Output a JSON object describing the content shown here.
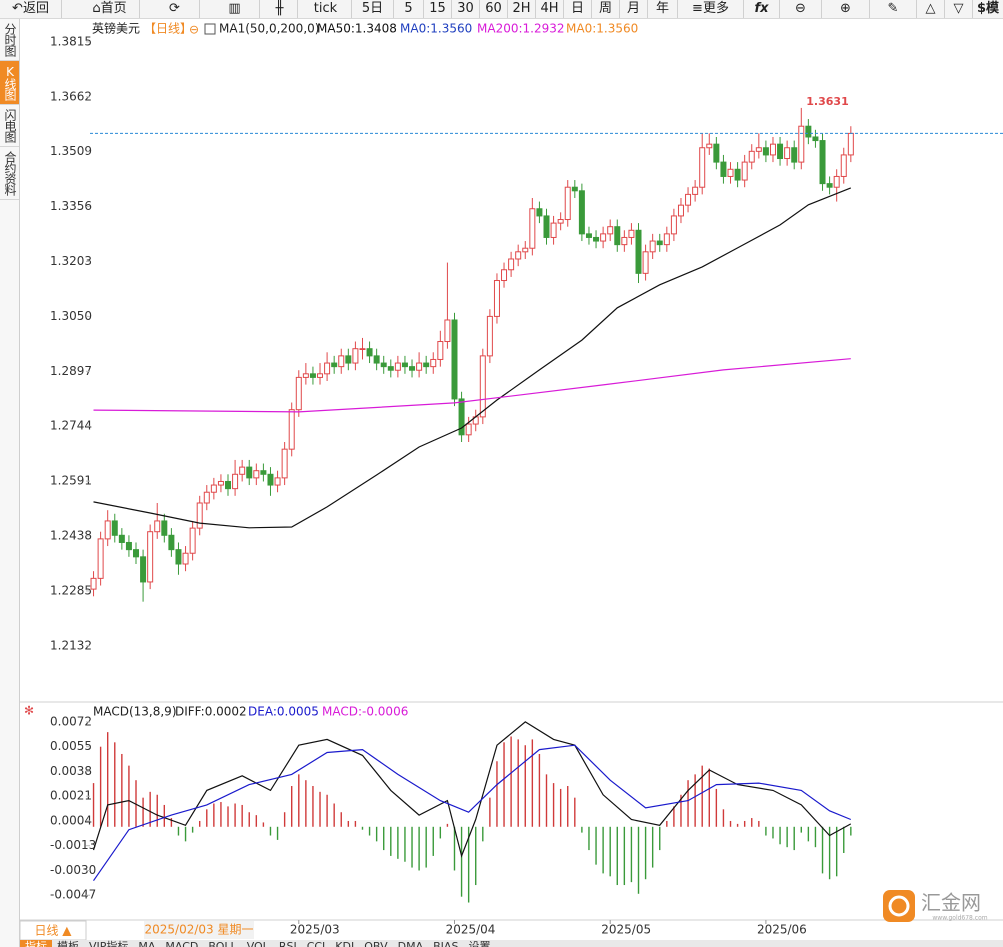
{
  "toolbar": [
    "返回",
    "首页",
    "tick",
    "5日",
    "5",
    "15",
    "30",
    "60",
    "2H",
    "4H",
    "日",
    "周",
    "月",
    "年",
    "更多",
    "fx",
    "$模"
  ],
  "sidebar": [
    "分时图",
    "K线图",
    "闪电图",
    "合约资料"
  ],
  "bottom_tabs": [
    "指标",
    "模板",
    "VIP指标",
    "MA",
    "MACD",
    "BOLL",
    "VOL",
    "RSI",
    "CCI",
    "KDJ",
    "OBV",
    "DMA",
    "BIAS",
    "设置"
  ],
  "period_tab": "日线 ▲",
  "watermark": {
    "name": "汇金网",
    "url": "www.gold678.com"
  },
  "chart_data": [
    {
      "type": "candlestick",
      "title": "英镑美元",
      "period": "【日线】",
      "indicator": "MA1(50,0,200,0)",
      "cursor_label": "2025/02/03 星期一",
      "up_color": "#e0484a",
      "down_color": "#3a9a3a",
      "last_line_color": "#2a8ad6",
      "annotation_color": "#e0484a",
      "xlim": [
        -0.5,
        128.5
      ],
      "ylim": [
        1.1981,
        1.3876
      ],
      "xticks": [
        {
          "value": 29,
          "label": "2025/03"
        },
        {
          "value": 51,
          "label": "2025/04"
        },
        {
          "value": 73,
          "label": "2025/05"
        },
        {
          "value": 95,
          "label": "2025/06"
        }
      ],
      "yticks": [
        1.3815,
        1.3662,
        1.3509,
        1.3356,
        1.3203,
        {
          "value": 1.305,
          "label": "1.3050"
        },
        1.2897,
        1.2744,
        1.2591,
        1.2438,
        1.2285,
        1.2132
      ],
      "x": [
        0,
        1,
        2,
        3,
        4,
        5,
        6,
        7,
        8,
        9,
        10,
        11,
        12,
        13,
        14,
        15,
        16,
        17,
        18,
        19,
        20,
        21,
        22,
        23,
        24,
        25,
        26,
        27,
        28,
        29,
        30,
        31,
        32,
        33,
        34,
        35,
        36,
        37,
        38,
        39,
        40,
        41,
        42,
        43,
        44,
        45,
        46,
        47,
        48,
        49,
        50,
        51,
        52,
        53,
        54,
        55,
        56,
        57,
        58,
        59,
        60,
        61,
        62,
        63,
        64,
        65,
        66,
        67,
        68,
        69,
        70,
        71,
        72,
        73,
        74,
        75,
        76,
        77,
        78,
        79,
        80,
        81,
        82,
        83,
        84,
        85,
        86,
        87,
        88,
        89,
        90,
        91,
        92,
        93,
        94,
        95,
        96,
        97,
        98,
        99,
        100,
        101,
        102,
        103,
        104,
        105,
        106,
        107
      ],
      "open": [
        1.229,
        1.232,
        1.243,
        1.248,
        1.244,
        1.242,
        1.24,
        1.238,
        1.231,
        1.245,
        1.248,
        1.244,
        1.24,
        1.236,
        1.239,
        1.246,
        1.253,
        1.256,
        1.258,
        1.259,
        1.257,
        1.261,
        1.263,
        1.26,
        1.262,
        1.261,
        1.258,
        1.26,
        1.268,
        1.279,
        1.288,
        1.289,
        1.288,
        1.289,
        1.292,
        1.291,
        1.294,
        1.292,
        1.296,
        1.296,
        1.294,
        1.292,
        1.291,
        1.29,
        1.292,
        1.291,
        1.29,
        1.292,
        1.291,
        1.293,
        1.298,
        1.304,
        1.282,
        1.272,
        1.275,
        1.277,
        1.294,
        1.305,
        1.315,
        1.318,
        1.321,
        1.323,
        1.324,
        1.335,
        1.333,
        1.327,
        1.331,
        1.332,
        1.341,
        1.34,
        1.328,
        1.327,
        1.326,
        1.328,
        1.33,
        1.325,
        1.327,
        1.329,
        1.317,
        1.323,
        1.326,
        1.325,
        1.328,
        1.333,
        1.336,
        1.339,
        1.341,
        1.352,
        1.353,
        1.348,
        1.344,
        1.346,
        1.343,
        1.348,
        1.351,
        1.352,
        1.35,
        1.353,
        1.349,
        1.352,
        1.348,
        1.358,
        1.355,
        1.354,
        1.342,
        1.341,
        1.344,
        1.35
      ],
      "high": [
        1.234,
        1.245,
        1.251,
        1.25,
        1.246,
        1.244,
        1.242,
        1.24,
        1.247,
        1.253,
        1.25,
        1.246,
        1.242,
        1.241,
        1.248,
        1.255,
        1.258,
        1.26,
        1.261,
        1.261,
        1.265,
        1.265,
        1.265,
        1.264,
        1.264,
        1.263,
        1.262,
        1.27,
        1.281,
        1.29,
        1.292,
        1.291,
        1.292,
        1.295,
        1.294,
        1.296,
        1.296,
        1.298,
        1.299,
        1.298,
        1.296,
        1.294,
        1.293,
        1.294,
        1.294,
        1.293,
        1.295,
        1.294,
        1.295,
        1.301,
        1.32,
        1.306,
        1.284,
        1.277,
        1.279,
        1.296,
        1.307,
        1.317,
        1.32,
        1.323,
        1.325,
        1.326,
        1.338,
        1.337,
        1.335,
        1.333,
        1.334,
        1.343,
        1.343,
        1.342,
        1.33,
        1.329,
        1.33,
        1.332,
        1.332,
        1.329,
        1.331,
        1.331,
        1.325,
        1.328,
        1.328,
        1.33,
        1.335,
        1.338,
        1.341,
        1.343,
        1.356,
        1.356,
        1.355,
        1.35,
        1.348,
        1.348,
        1.35,
        1.353,
        1.356,
        1.354,
        1.355,
        1.355,
        1.354,
        1.354,
        1.3631,
        1.36,
        1.357,
        1.356,
        1.344,
        1.346,
        1.352,
        1.358
      ],
      "low": [
        1.227,
        1.23,
        1.241,
        1.242,
        1.24,
        1.238,
        1.236,
        1.2255,
        1.229,
        1.243,
        1.242,
        1.238,
        1.233,
        1.234,
        1.237,
        1.244,
        1.251,
        1.254,
        1.256,
        1.255,
        1.255,
        1.259,
        1.258,
        1.258,
        1.259,
        1.255,
        1.256,
        1.258,
        1.266,
        1.277,
        1.286,
        1.286,
        1.286,
        1.287,
        1.289,
        1.289,
        1.29,
        1.29,
        1.293,
        1.292,
        1.29,
        1.289,
        1.288,
        1.288,
        1.289,
        1.288,
        1.288,
        1.289,
        1.289,
        1.291,
        1.296,
        1.28,
        1.27,
        1.27,
        1.273,
        1.275,
        1.292,
        1.303,
        1.313,
        1.316,
        1.319,
        1.321,
        1.322,
        1.331,
        1.325,
        1.325,
        1.329,
        1.33,
        1.338,
        1.326,
        1.325,
        1.324,
        1.324,
        1.326,
        1.323,
        1.323,
        1.325,
        1.3143,
        1.315,
        1.321,
        1.323,
        1.323,
        1.326,
        1.331,
        1.334,
        1.337,
        1.339,
        1.35,
        1.346,
        1.342,
        1.342,
        1.341,
        1.341,
        1.346,
        1.349,
        1.348,
        1.348,
        1.347,
        1.347,
        1.346,
        1.346,
        1.353,
        1.352,
        1.34,
        1.339,
        1.337,
        1.342,
        1.348
      ],
      "close": [
        1.232,
        1.243,
        1.248,
        1.244,
        1.242,
        1.24,
        1.238,
        1.231,
        1.245,
        1.248,
        1.244,
        1.24,
        1.236,
        1.239,
        1.246,
        1.253,
        1.256,
        1.258,
        1.259,
        1.257,
        1.261,
        1.263,
        1.26,
        1.262,
        1.261,
        1.258,
        1.26,
        1.268,
        1.279,
        1.288,
        1.289,
        1.288,
        1.289,
        1.292,
        1.291,
        1.294,
        1.292,
        1.296,
        1.296,
        1.294,
        1.292,
        1.291,
        1.29,
        1.292,
        1.291,
        1.29,
        1.292,
        1.291,
        1.293,
        1.298,
        1.304,
        1.282,
        1.272,
        1.275,
        1.277,
        1.294,
        1.305,
        1.315,
        1.318,
        1.321,
        1.323,
        1.324,
        1.335,
        1.333,
        1.327,
        1.331,
        1.332,
        1.341,
        1.34,
        1.328,
        1.327,
        1.326,
        1.328,
        1.33,
        1.325,
        1.327,
        1.329,
        1.317,
        1.323,
        1.326,
        1.325,
        1.328,
        1.333,
        1.336,
        1.339,
        1.341,
        1.352,
        1.353,
        1.348,
        1.344,
        1.346,
        1.343,
        1.348,
        1.351,
        1.352,
        1.35,
        1.353,
        1.349,
        1.352,
        1.348,
        1.358,
        1.355,
        1.354,
        1.342,
        1.341,
        1.344,
        1.35,
        1.356
      ],
      "series": [
        {
          "name": "MA50:1.3408",
          "color": "#111111",
          "x": [
            0,
            8,
            15,
            22,
            28,
            33,
            40,
            46,
            52,
            57,
            63,
            69,
            74,
            80,
            86,
            91,
            97,
            101,
            107
          ],
          "values": [
            1.2533,
            1.2502,
            1.2474,
            1.2461,
            1.2463,
            1.2519,
            1.2608,
            1.2686,
            1.2739,
            1.2817,
            1.2901,
            1.2984,
            1.3074,
            1.3138,
            1.3188,
            1.3241,
            1.3305,
            1.3361,
            1.3408
          ]
        },
        {
          "name": "MA0:1.3560",
          "color": "#1f3fbf"
        },
        {
          "name": "MA200:1.2932",
          "color": "#d81bd8",
          "x": [
            0,
            29,
            51,
            72,
            89,
            107
          ],
          "values": [
            1.2789,
            1.2784,
            1.2809,
            1.2859,
            1.2901,
            1.2932
          ]
        },
        {
          "name": "MA0:1.3560",
          "color": "#f08a24"
        }
      ]
    },
    {
      "type": "macd",
      "title": "MACD(13,8,9)",
      "xlim": [
        -0.5,
        128.5
      ],
      "ylim": [
        -0.0064,
        0.0085
      ],
      "yticks": [
        0.0072,
        0.0055,
        0.0038,
        0.0021,
        0.0004,
        -0.0013,
        {
          "value": -0.003,
          "label": "-0.0030"
        },
        -0.0047
      ],
      "histogram": {
        "name": "MACD:-0.0006",
        "color": "#d81bd8",
        "up_color": "#d03a3a",
        "down_color": "#3a9a3a",
        "values": [
          0.003,
          0.0055,
          0.0065,
          0.0058,
          0.005,
          0.0042,
          0.0032,
          0.002,
          0.0024,
          0.0022,
          0.0015,
          0.0006,
          -0.0006,
          -0.001,
          -0.0004,
          0.0004,
          0.0012,
          0.0016,
          0.0017,
          0.0014,
          0.0016,
          0.0015,
          0.001,
          0.0008,
          0.0003,
          -0.0006,
          -0.0009,
          0.001,
          0.0028,
          0.0036,
          0.0032,
          0.0028,
          0.0024,
          0.0022,
          0.0016,
          0.001,
          0.0004,
          0.0004,
          -0.0002,
          -0.0006,
          -0.001,
          -0.0016,
          -0.002,
          -0.0022,
          -0.0024,
          -0.0028,
          -0.003,
          -0.0028,
          -0.002,
          -0.0008,
          0.0002,
          -0.003,
          -0.0048,
          -0.0052,
          -0.004,
          -0.001,
          0.002,
          0.0045,
          0.0058,
          0.0062,
          0.006,
          0.0056,
          0.006,
          0.005,
          0.0036,
          0.003,
          0.0026,
          0.0028,
          0.002,
          -0.0004,
          -0.0016,
          -0.0026,
          -0.0032,
          -0.0034,
          -0.004,
          -0.004,
          -0.0038,
          -0.0046,
          -0.0036,
          -0.0028,
          -0.0016,
          0.0004,
          0.0014,
          0.0022,
          0.0032,
          0.0036,
          0.0042,
          0.004,
          0.0026,
          0.0012,
          0.0004,
          0.0002,
          0.0004,
          0.0006,
          0.0004,
          -0.0006,
          -0.0008,
          -0.0012,
          -0.0014,
          -0.0016,
          -0.0004,
          -0.001,
          -0.0014,
          -0.0032,
          -0.0036,
          -0.0034,
          -0.0018,
          -0.0006
        ]
      },
      "series": [
        {
          "name": "DIFF:0.0002",
          "color": "#111111",
          "x": [
            0,
            2,
            5,
            9,
            13,
            16,
            21,
            25,
            29,
            33,
            38,
            42,
            46,
            50,
            52,
            54,
            57,
            61,
            65,
            68,
            72,
            76,
            80,
            84,
            87,
            91,
            96,
            100,
            104,
            107
          ],
          "values": [
            -0.0016,
            0.0015,
            0.0018,
            0.0008,
            0.0001,
            0.0025,
            0.0035,
            0.0025,
            0.0056,
            0.006,
            0.0049,
            0.0025,
            0.0008,
            0.0018,
            -0.002,
            0.0005,
            0.0056,
            0.0072,
            0.006,
            0.0056,
            0.0022,
            0.0005,
            0.0001,
            0.0025,
            0.0039,
            0.0029,
            0.0025,
            0.0015,
            -0.0006,
            0.0002
          ]
        },
        {
          "name": "DEA:0.0005",
          "color": "#1a1acc",
          "x": [
            0,
            5,
            11,
            16,
            22,
            28,
            33,
            38,
            43,
            49,
            53,
            57,
            63,
            68,
            73,
            78,
            84,
            88,
            94,
            100,
            104,
            107
          ],
          "values": [
            -0.0037,
            -0.0002,
            0.0008,
            0.0015,
            0.0029,
            0.0036,
            0.0051,
            0.0053,
            0.0036,
            0.0018,
            0.001,
            0.0029,
            0.0053,
            0.0056,
            0.0032,
            0.0013,
            0.0018,
            0.0029,
            0.003,
            0.0025,
            0.0011,
            0.0005
          ]
        }
      ]
    }
  ]
}
